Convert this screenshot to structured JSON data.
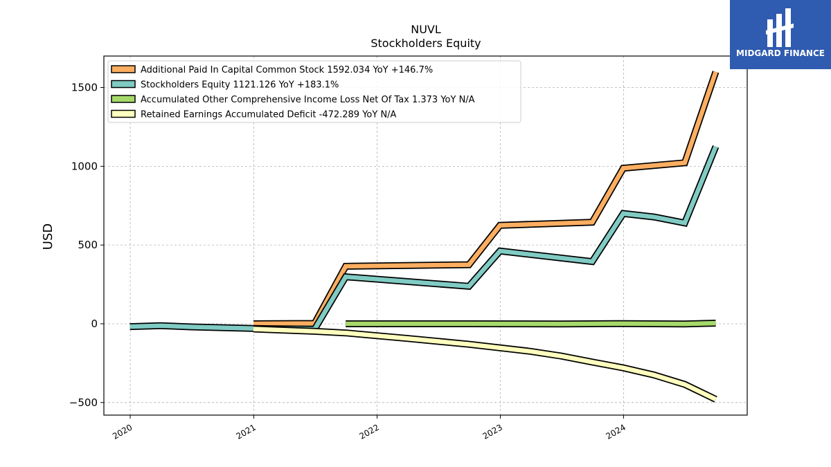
{
  "logo": {
    "text": "MIDGARD FINANCE",
    "bg": "#2f5bb0"
  },
  "chart_data": {
    "type": "line",
    "title": "NUVL",
    "subtitle": "Stockholders  Equity",
    "xlabel": "",
    "ylabel": "USD",
    "xlim": [
      "2019-10-15",
      "2025-01-01"
    ],
    "ylim": [
      -580,
      1700
    ],
    "yticks": [
      -500,
      0,
      500,
      1000,
      1500
    ],
    "ytick_labels": [
      "−500",
      "0",
      "500",
      "1000",
      "1500"
    ],
    "xticks": [
      "2020-01-01",
      "2021-01-01",
      "2022-01-01",
      "2023-01-01",
      "2024-01-01"
    ],
    "xtick_labels": [
      "2020",
      "2021",
      "2022",
      "2023",
      "2024"
    ],
    "grid": true,
    "legend_position": "top-left",
    "series": [
      {
        "name": "Additional Paid In Capital Common Stock  1592.034 YoY +146.7%",
        "color": "#fdae61",
        "points": [
          [
            "2020-12-31",
            0
          ],
          [
            "2021-06-30",
            2
          ],
          [
            "2021-09-30",
            365
          ],
          [
            "2022-09-30",
            375
          ],
          [
            "2022-12-31",
            625
          ],
          [
            "2023-09-30",
            645
          ],
          [
            "2023-12-31",
            988
          ],
          [
            "2024-06-30",
            1022
          ],
          [
            "2024-09-30",
            1600
          ]
        ]
      },
      {
        "name": "Stockholders Equity  1121.126 YoY +183.1%",
        "color": "#80cbc4",
        "points": [
          [
            "2019-12-31",
            -18
          ],
          [
            "2020-03-31",
            -12
          ],
          [
            "2020-06-30",
            -20
          ],
          [
            "2020-12-31",
            -30
          ],
          [
            "2021-06-30",
            -35
          ],
          [
            "2021-09-30",
            298
          ],
          [
            "2022-09-30",
            238
          ],
          [
            "2022-12-31",
            462
          ],
          [
            "2023-09-30",
            395
          ],
          [
            "2023-12-31",
            700
          ],
          [
            "2024-03-31",
            678
          ],
          [
            "2024-06-30",
            640
          ],
          [
            "2024-09-30",
            1125
          ]
        ]
      },
      {
        "name": "Accumulated Other Comprehensive Income Loss Net Of Tax  1.373 YoY N/A",
        "color": "#a6d96a",
        "points": [
          [
            "2021-09-30",
            0
          ],
          [
            "2022-09-30",
            0
          ],
          [
            "2023-06-30",
            -1
          ],
          [
            "2023-12-31",
            1
          ],
          [
            "2024-06-30",
            -1
          ],
          [
            "2024-09-30",
            4
          ]
        ]
      },
      {
        "name": "Retained Earnings Accumulated Deficit  -472.289 YoY N/A",
        "color": "#ffffbf",
        "points": [
          [
            "2020-12-31",
            -33
          ],
          [
            "2021-06-30",
            -48
          ],
          [
            "2021-09-30",
            -58
          ],
          [
            "2022-03-31",
            -93
          ],
          [
            "2022-09-30",
            -130
          ],
          [
            "2023-03-31",
            -175
          ],
          [
            "2023-06-30",
            -205
          ],
          [
            "2023-09-30",
            -243
          ],
          [
            "2023-12-31",
            -280
          ],
          [
            "2024-03-31",
            -325
          ],
          [
            "2024-06-30",
            -385
          ],
          [
            "2024-09-30",
            -480
          ]
        ]
      }
    ]
  }
}
